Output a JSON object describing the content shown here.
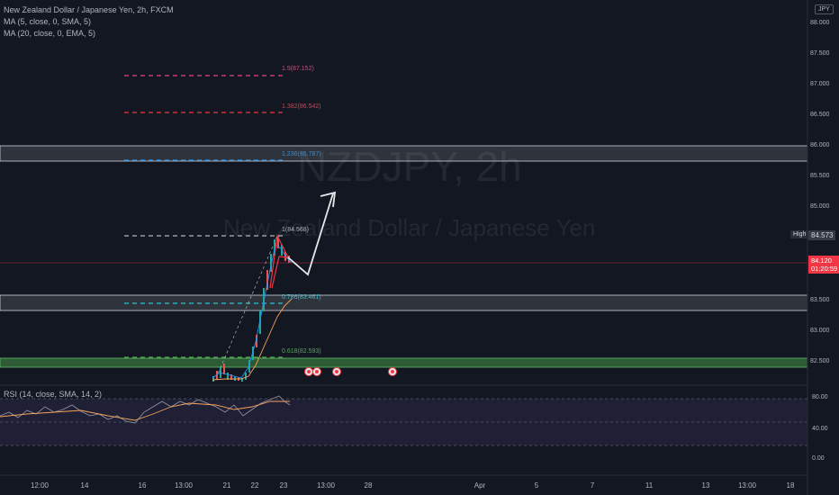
{
  "legend": {
    "symbol": "New Zealand Dollar / Japanese Yen, 2h, FXCM",
    "ma1": "MA (5, close, 0, SMA, 5)",
    "ma2": "MA (20, close, 0, EMA, 5)",
    "rsi": "RSI (14, close, SMA, 14, 2)"
  },
  "watermark": {
    "ticker": "NZDJPY, 2h",
    "name": "New Zealand Dollar / Japanese Yen"
  },
  "currency": "JPY",
  "price_axis": [
    "88.000",
    "87.500",
    "87.000",
    "86.500",
    "86.000",
    "85.500",
    "85.000",
    "83.500",
    "83.000",
    "82.500"
  ],
  "high": {
    "tag": "High",
    "value": "84.573"
  },
  "current_price": {
    "price": "84.120",
    "countdown": "01:20:59"
  },
  "rsi_axis": [
    "80.00",
    "40.00",
    "0.00"
  ],
  "time_axis": [
    "12:00",
    "14",
    "16",
    "13:00",
    "21",
    "22",
    "23",
    "13:00",
    "28",
    "Apr",
    "5",
    "7",
    "11",
    "13",
    "13:00",
    "18"
  ],
  "fib_levels": [
    {
      "label": "1.5(87.152)",
      "color": "#e0457b"
    },
    {
      "label": "1.382(86.542)",
      "color": "#f23645"
    },
    {
      "label": "1.236(85.787)",
      "color": "#2196f3"
    },
    {
      "label": "1(84.568)",
      "color": "#b2b5be"
    },
    {
      "label": "0.786(83.461)",
      "color": "#26c6da"
    },
    {
      "label": "0.618(82.593)",
      "color": "#4caf50"
    }
  ],
  "colors": {
    "background": "#131722",
    "up": "#26a69a",
    "down": "#ef5350",
    "accent": "#f23645"
  }
}
